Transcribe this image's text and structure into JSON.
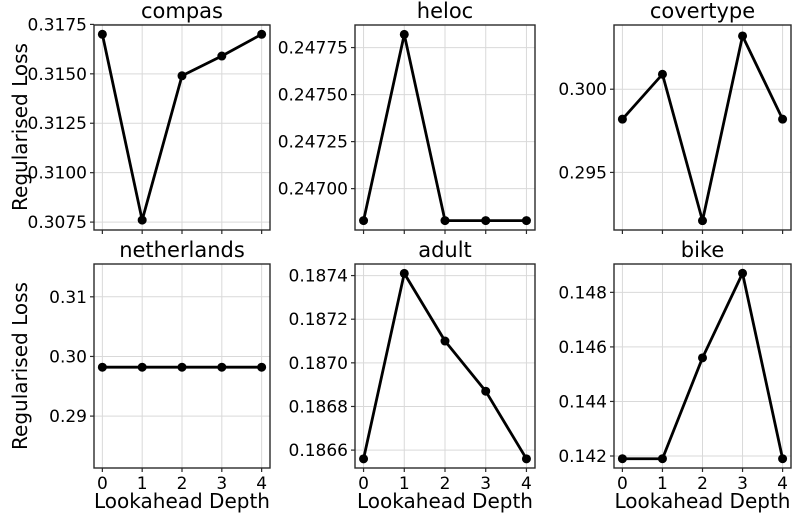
{
  "figure": {
    "ylabel": "Regularised Loss",
    "xlabel": "Lookahead Depth",
    "background": "#ffffff"
  },
  "style": {
    "line_color": "#000000",
    "marker_color": "#000000",
    "marker": "circle",
    "grid_color": "#d9d9d9",
    "frame_color": "#2a2a2a",
    "tick_color": "#2a2a2a",
    "text_color": "#000000",
    "tick_font_size": 17
  },
  "chart_data": [
    {
      "type": "line",
      "title": "compas",
      "ylabel": "Regularised Loss",
      "x": [
        0,
        1,
        2,
        3,
        4
      ],
      "y": [
        0.317,
        0.3076,
        0.3149,
        0.3159,
        0.317
      ],
      "xlim": [
        -0.21,
        4.21
      ],
      "ylim": [
        0.3071,
        0.31747
      ],
      "xticks": [
        0,
        1,
        2,
        3,
        4
      ],
      "xtick_labels": [
        "0",
        "1",
        "2",
        "3",
        "4"
      ],
      "show_xtick_labels": false,
      "yticks": [
        0.3075,
        0.31,
        0.3125,
        0.315,
        0.3175
      ],
      "ytick_labels": [
        "0.3075",
        "0.3100",
        "0.3125",
        "0.3150",
        "0.3175"
      ],
      "grid": true
    },
    {
      "type": "line",
      "title": "heloc",
      "x": [
        0,
        1,
        2,
        3,
        4
      ],
      "y": [
        0.24683,
        0.24782,
        0.24683,
        0.24683,
        0.24683
      ],
      "xlim": [
        -0.21,
        4.21
      ],
      "ylim": [
        0.24678,
        0.24787
      ],
      "xticks": [
        0,
        1,
        2,
        3,
        4
      ],
      "xtick_labels": [
        "0",
        "1",
        "2",
        "3",
        "4"
      ],
      "show_xtick_labels": false,
      "yticks": [
        0.247,
        0.24725,
        0.2475,
        0.24775
      ],
      "ytick_labels": [
        "0.24700",
        "0.24725",
        "0.24750",
        "0.24775"
      ],
      "grid": true
    },
    {
      "type": "line",
      "title": "covertype",
      "x": [
        0,
        1,
        2,
        3,
        4
      ],
      "y": [
        0.2982,
        0.3009,
        0.2921,
        0.3032,
        0.2982
      ],
      "xlim": [
        -0.21,
        4.21
      ],
      "ylim": [
        0.29154,
        0.30386
      ],
      "xticks": [
        0,
        1,
        2,
        3,
        4
      ],
      "xtick_labels": [
        "0",
        "1",
        "2",
        "3",
        "4"
      ],
      "show_xtick_labels": false,
      "yticks": [
        0.295,
        0.3
      ],
      "ytick_labels": [
        "0.295",
        "0.300"
      ],
      "grid": true
    },
    {
      "type": "line",
      "title": "netherlands",
      "ylabel": "Regularised Loss",
      "xlabel": "Lookahead Depth",
      "x": [
        0,
        1,
        2,
        3,
        4
      ],
      "y": [
        0.2982,
        0.2982,
        0.2982,
        0.2982,
        0.2982
      ],
      "xlim": [
        -0.21,
        4.21
      ],
      "ylim": [
        0.2813,
        0.3155
      ],
      "xticks": [
        0,
        1,
        2,
        3,
        4
      ],
      "xtick_labels": [
        "0",
        "1",
        "2",
        "3",
        "4"
      ],
      "show_xtick_labels": true,
      "yticks": [
        0.29,
        0.3,
        0.31
      ],
      "ytick_labels": [
        "0.29",
        "0.30",
        "0.31"
      ],
      "grid": true
    },
    {
      "type": "line",
      "title": "adult",
      "xlabel": "Lookahead Depth",
      "x": [
        0,
        1,
        2,
        3,
        4
      ],
      "y": [
        0.18656,
        0.18741,
        0.1871,
        0.18687,
        0.18656
      ],
      "xlim": [
        -0.21,
        4.21
      ],
      "ylim": [
        0.186518,
        0.187453
      ],
      "xticks": [
        0,
        1,
        2,
        3,
        4
      ],
      "xtick_labels": [
        "0",
        "1",
        "2",
        "3",
        "4"
      ],
      "show_xtick_labels": true,
      "yticks": [
        0.1866,
        0.1868,
        0.187,
        0.1872,
        0.1874
      ],
      "ytick_labels": [
        "0.1866",
        "0.1868",
        "0.1870",
        "0.1872",
        "0.1874"
      ],
      "grid": true
    },
    {
      "type": "line",
      "title": "bike",
      "xlabel": "Lookahead Depth",
      "x": [
        0,
        1,
        2,
        3,
        4
      ],
      "y": [
        0.1419,
        0.1419,
        0.1456,
        0.1487,
        0.1419
      ],
      "xlim": [
        -0.21,
        4.21
      ],
      "ylim": [
        0.14156,
        0.14904
      ],
      "xticks": [
        0,
        1,
        2,
        3,
        4
      ],
      "xtick_labels": [
        "0",
        "1",
        "2",
        "3",
        "4"
      ],
      "show_xtick_labels": true,
      "yticks": [
        0.142,
        0.144,
        0.146,
        0.148
      ],
      "ytick_labels": [
        "0.142",
        "0.144",
        "0.146",
        "0.148"
      ],
      "grid": true
    }
  ]
}
